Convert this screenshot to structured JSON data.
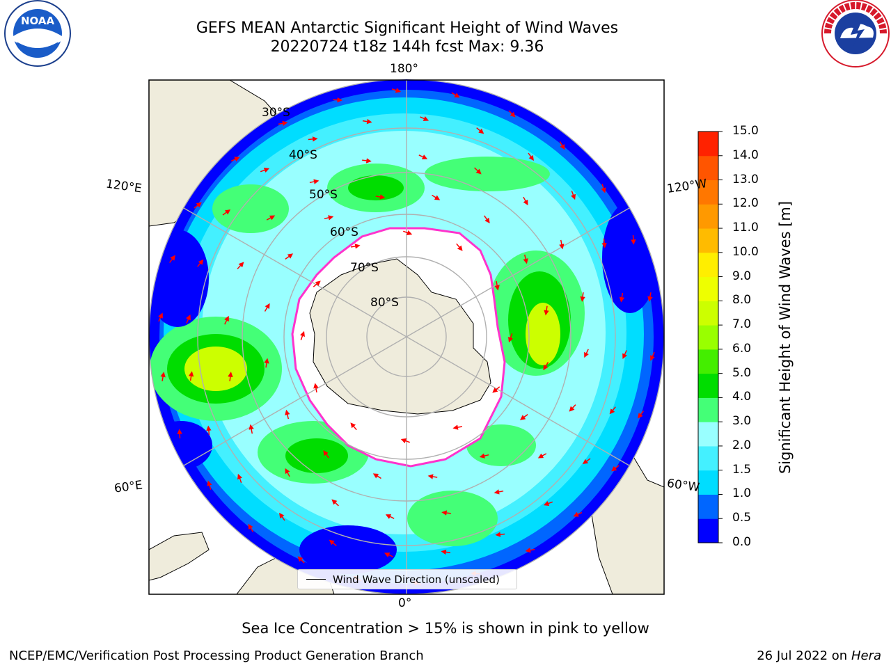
{
  "header": {
    "title": "GEFS MEAN Antarctic Significant Height of Wind Waves",
    "subtitle": "20220724 t18z 144h fcst   Max: 9.36"
  },
  "logos": {
    "left": "NOAA",
    "left_ring": "NATIONAL OCEANIC AND ATMOSPHERIC ADMINISTRATION · U.S. DEPARTMENT OF COMMERCE",
    "right_ring": "NATIONAL WEATHER SERVICE"
  },
  "map": {
    "projection": "south-polar-stereographic",
    "longitude_labels": {
      "top": "180°",
      "bottom": "0°",
      "left_upper": "120°E",
      "left_lower": "60°E",
      "right_upper": "120°W",
      "right_lower": "60°W"
    },
    "latitude_labels": [
      "30°S",
      "40°S",
      "50°S",
      "60°S",
      "70°S",
      "80°S"
    ],
    "gridline_color": "#b0b0b0",
    "land_color": "#efecdc",
    "ice_edge_color": "#ff33cc"
  },
  "legend": {
    "label": "Wind Wave Direction (unscaled)"
  },
  "colorbar": {
    "title": "Significant Height of Wind Waves [m]",
    "ticks": [
      "0.0",
      "0.5",
      "1.0",
      "1.5",
      "2.0",
      "3.0",
      "4.0",
      "5.0",
      "6.0",
      "7.0",
      "8.0",
      "9.0",
      "10.0",
      "11.0",
      "12.0",
      "13.0",
      "14.0",
      "15.0"
    ],
    "colors": [
      "#0000ff",
      "#0066ff",
      "#00ddff",
      "#44f0ff",
      "#99ffff",
      "#44ff77",
      "#00dd00",
      "#44ee00",
      "#99ff00",
      "#ccff00",
      "#eeff00",
      "#ffee00",
      "#ffbb00",
      "#ff9900",
      "#ff7700",
      "#ff5500",
      "#ff2200"
    ]
  },
  "notes": {
    "ice": "Sea Ice Concentration > 15% is shown in pink to yellow",
    "producer": "NCEP/EMC/Verification Post Processing Product Generation Branch",
    "date": "26 Jul 2022 on ",
    "machine": "Hera"
  }
}
